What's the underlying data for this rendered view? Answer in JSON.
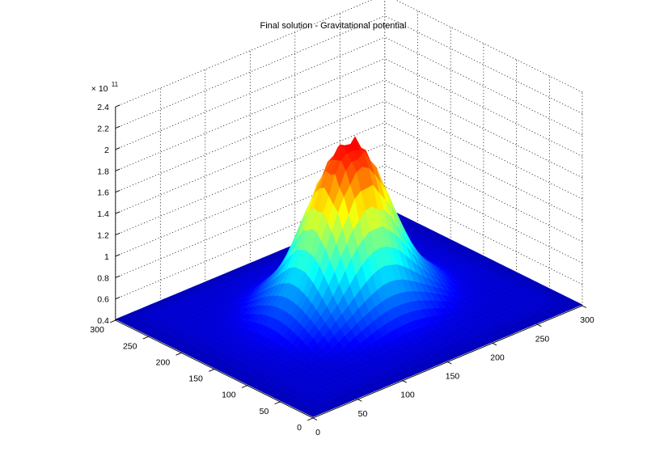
{
  "chart_data": {
    "type": "surface",
    "title": "Final solution - Gravitational potential",
    "xlabel": "",
    "ylabel": "",
    "zlabel": "",
    "x_range": [
      0,
      300
    ],
    "y_range": [
      0,
      300
    ],
    "zlim": [
      0.4,
      2.4
    ],
    "z_exponent_label": "× 10",
    "z_exponent_power": "11",
    "x_ticks": [
      "0",
      "50",
      "100",
      "150",
      "200",
      "250",
      "300"
    ],
    "y_ticks": [
      "0",
      "50",
      "100",
      "150",
      "200",
      "250",
      "300"
    ],
    "z_ticks": [
      "0.4",
      "0.6",
      "0.8",
      "1",
      "1.2",
      "1.4",
      "1.6",
      "1.8",
      "2",
      "2.2",
      "2.4"
    ],
    "grid": true,
    "colormap": "jet",
    "peak": {
      "x": 150,
      "y": 150,
      "z": 2.0
    },
    "base_level": 0.45,
    "colors": {
      "low": "#00008f",
      "mid": "#00ffff",
      "high": "#800000"
    }
  }
}
